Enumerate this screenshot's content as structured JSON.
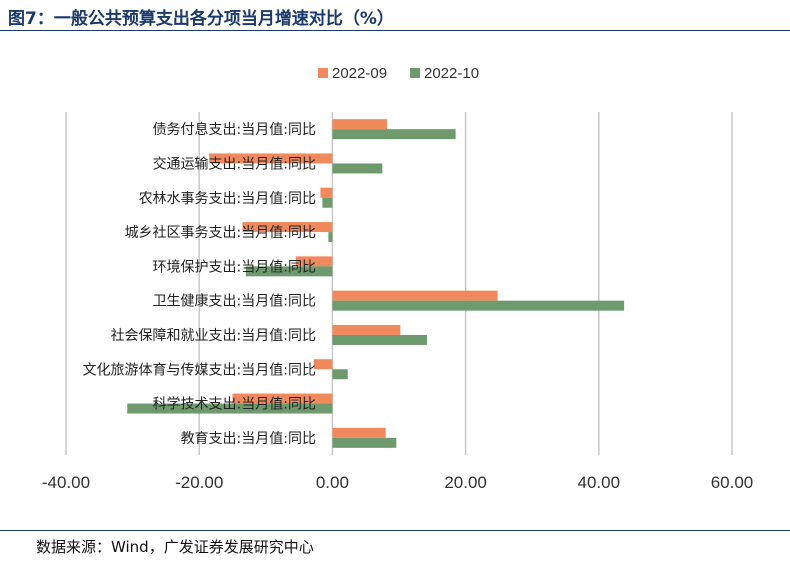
{
  "header": {
    "title": "图7：一般公共预算支出各分项当月增速对比（%）"
  },
  "footer": {
    "source": "数据来源：Wind，广发证券发展研究中心"
  },
  "colors": {
    "series_2022_09": "#f08a5d",
    "series_2022_10": "#6e9a6e",
    "gridline": "#c8c8c8",
    "title": "#1a3a6b"
  },
  "chart_data": {
    "type": "bar",
    "orientation": "horizontal",
    "categories": [
      "债务付息支出:当月值:同比",
      "交通运输支出:当月值:同比",
      "农林水事务支出:当月值:同比",
      "城乡社区事务支出:当月值:同比",
      "环境保护支出:当月值:同比",
      "卫生健康支出:当月值:同比",
      "社会保障和就业支出:当月值:同比",
      "文化旅游体育与传媒支出:当月值:同比",
      "科学技术支出:当月值:同比",
      "教育支出:当月值:同比"
    ],
    "series": [
      {
        "name": "2022-09",
        "values": [
          8.2,
          -18.5,
          -1.8,
          -13.5,
          -5.5,
          24.8,
          10.2,
          -2.8,
          -15.0,
          8.0
        ]
      },
      {
        "name": "2022-10",
        "values": [
          18.5,
          7.5,
          -1.5,
          -0.6,
          -13.0,
          43.8,
          14.2,
          2.3,
          -30.8,
          9.6
        ]
      }
    ],
    "xlim": [
      -40,
      60
    ],
    "xticks": [
      -40,
      -20,
      0,
      20,
      40,
      60
    ],
    "xtick_labels": [
      "-40.00",
      "-20.00",
      "0.00",
      "20.00",
      "40.00",
      "60.00"
    ],
    "grid": "vertical",
    "legend": "top-center"
  }
}
